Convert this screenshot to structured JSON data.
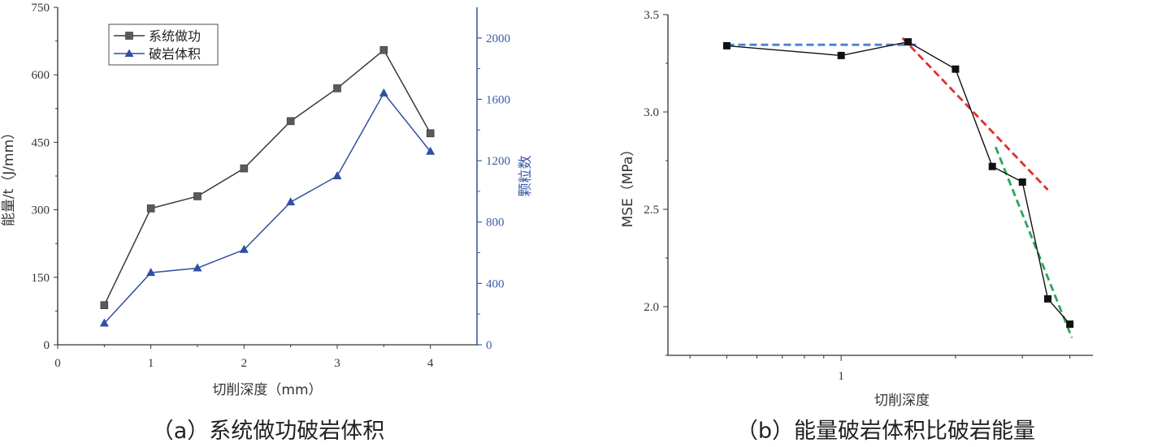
{
  "chart_data": [
    {
      "type": "line",
      "caption": "（a）系统做功破岩体积",
      "xlabel": "切削深度（mm）",
      "ylabel": "能量/t（J/mm）",
      "y2label": "颗粒数",
      "xlim": [
        0,
        4.5
      ],
      "ylim": [
        0,
        750
      ],
      "y2lim": [
        0,
        2200
      ],
      "xticks": [
        "0",
        "1",
        "2",
        "3",
        "4"
      ],
      "yticks": [
        "0",
        "150",
        "300",
        "450",
        "600",
        "750"
      ],
      "y2ticks": [
        "0",
        "400",
        "800",
        "1200",
        "1600",
        "2000"
      ],
      "legend_position": "top-left",
      "series": [
        {
          "name": "系统做功",
          "axis": "left",
          "marker": "square",
          "color": "#3a3a3a",
          "x": [
            0.5,
            1.0,
            1.5,
            2.0,
            2.5,
            3.0,
            3.5,
            4.0
          ],
          "values": [
            88,
            303,
            330,
            392,
            497,
            570,
            655,
            470
          ]
        },
        {
          "name": "破岩体积",
          "axis": "right",
          "marker": "triangle",
          "color": "#2f4fa0",
          "x": [
            0.5,
            1.0,
            1.5,
            2.0,
            2.5,
            3.0,
            3.5,
            4.0
          ],
          "values": [
            140,
            470,
            500,
            620,
            930,
            1100,
            1640,
            1260
          ]
        }
      ]
    },
    {
      "type": "line",
      "caption": "（b）能量破岩体积比破岩能量",
      "xlabel": "切削深度",
      "ylabel": "MSE（MPa）",
      "xscale": "log",
      "xlim": [
        0.35,
        4.6
      ],
      "ylim": [
        1.75,
        3.5
      ],
      "xticks": [
        "1"
      ],
      "yticks": [
        "2.0",
        "2.5",
        "3.0",
        "3.5"
      ],
      "series": [
        {
          "marker": "square",
          "color": "#111111",
          "x": [
            0.5,
            1.0,
            1.5,
            2.0,
            2.5,
            3.0,
            3.5,
            4.0
          ],
          "values": [
            3.34,
            3.29,
            3.36,
            3.22,
            2.72,
            2.64,
            2.04,
            1.91
          ]
        }
      ],
      "trend_lines": [
        {
          "color": "#4a7fd6",
          "x": [
            0.5,
            1.6
          ],
          "values": [
            3.345,
            3.345
          ]
        },
        {
          "color": "#e03030",
          "x": [
            1.45,
            3.5
          ],
          "values": [
            3.38,
            2.6
          ]
        },
        {
          "color": "#2aa55a",
          "x": [
            2.55,
            4.05
          ],
          "values": [
            2.82,
            1.84
          ]
        }
      ]
    }
  ]
}
